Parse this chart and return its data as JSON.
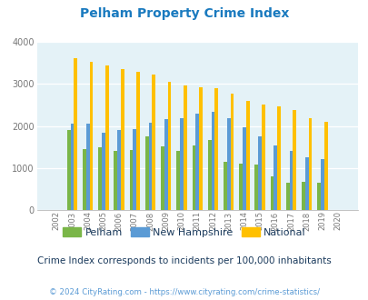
{
  "title": "Pelham Property Crime Index",
  "years": [
    "02",
    "03",
    "04",
    "05",
    "06",
    "07",
    "08",
    "09",
    "10",
    "11",
    "12",
    "13",
    "14",
    "15",
    "16",
    "17",
    "18",
    "19",
    "20"
  ],
  "pelham": [
    0,
    1900,
    1440,
    1500,
    1400,
    1430,
    1760,
    1520,
    1400,
    1530,
    1660,
    1150,
    1110,
    1090,
    800,
    640,
    670,
    650,
    0
  ],
  "new_hampshire": [
    0,
    2060,
    2060,
    1840,
    1900,
    1930,
    2080,
    2160,
    2190,
    2300,
    2330,
    2190,
    1980,
    1760,
    1530,
    1400,
    1250,
    1220,
    0
  ],
  "national": [
    0,
    3620,
    3530,
    3450,
    3360,
    3280,
    3220,
    3060,
    2960,
    2930,
    2890,
    2760,
    2600,
    2510,
    2460,
    2390,
    2180,
    2110,
    0
  ],
  "pelham_color": "#7ab648",
  "nh_color": "#5b9bd5",
  "national_color": "#ffc000",
  "bg_color": "#e4f2f7",
  "ylim": [
    0,
    4000
  ],
  "yticks": [
    0,
    1000,
    2000,
    3000,
    4000
  ],
  "subtitle": "Crime Index corresponds to incidents per 100,000 inhabitants",
  "footer": "© 2024 CityRating.com - https://www.cityrating.com/crime-statistics/",
  "title_color": "#1a7abf",
  "subtitle_color": "#1a3a5c",
  "footer_color": "#5b9bd5"
}
